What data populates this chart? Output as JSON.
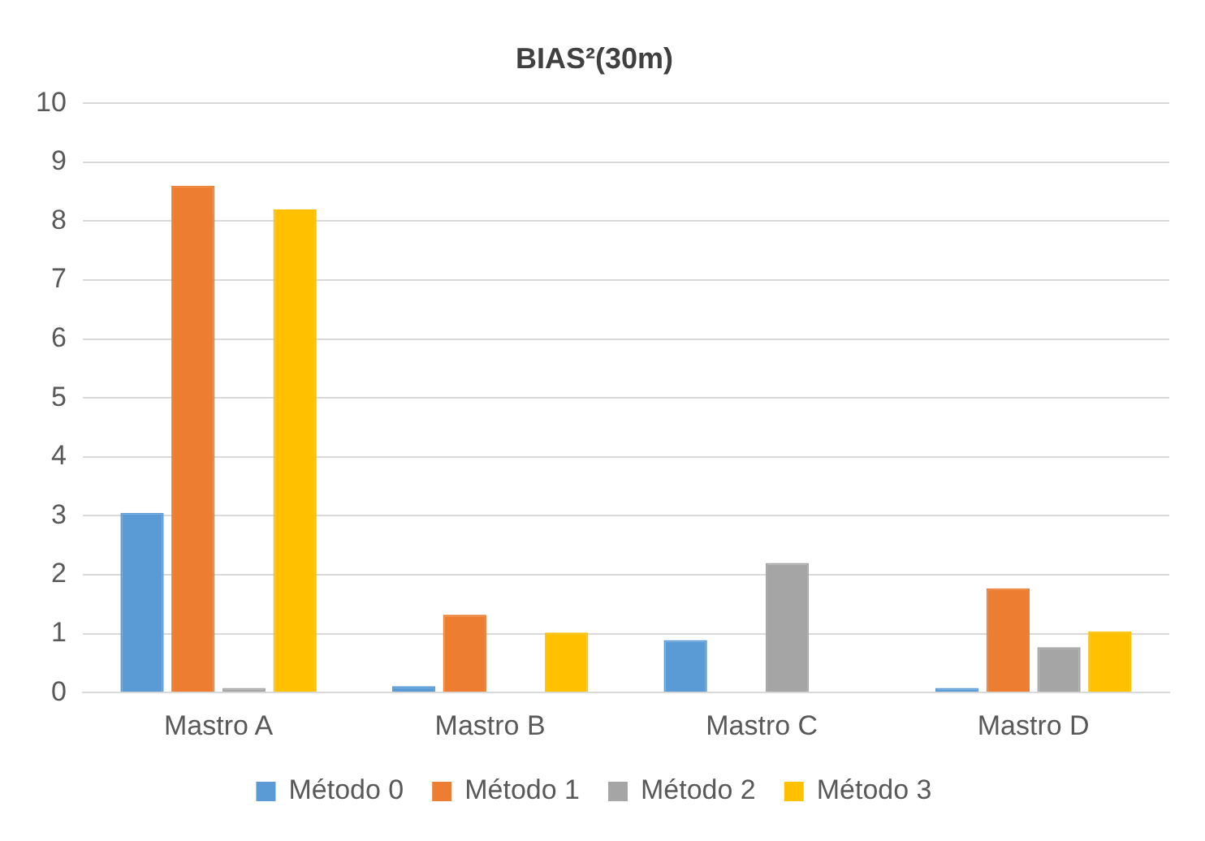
{
  "chart_data": {
    "type": "bar",
    "title": "BIAS²(30m)",
    "categories": [
      "Mastro A",
      "Mastro B",
      "Mastro C",
      "Mastro D"
    ],
    "series": [
      {
        "name": "Método 0",
        "color": "#5b9bd5",
        "values": [
          3.05,
          0.11,
          0.89,
          0.08
        ]
      },
      {
        "name": "Método 1",
        "color": "#ed7d31",
        "values": [
          8.6,
          1.32,
          0,
          1.77
        ]
      },
      {
        "name": "Método 2",
        "color": "#a5a5a5",
        "values": [
          0.08,
          0,
          2.2,
          0.77
        ]
      },
      {
        "name": "Método 3",
        "color": "#ffc000",
        "values": [
          8.2,
          1.02,
          0,
          1.04
        ]
      }
    ],
    "ylim": [
      0,
      10
    ],
    "yticks": [
      0,
      1,
      2,
      3,
      4,
      5,
      6,
      7,
      8,
      9,
      10
    ],
    "grid": "y",
    "legend": "bottom"
  }
}
